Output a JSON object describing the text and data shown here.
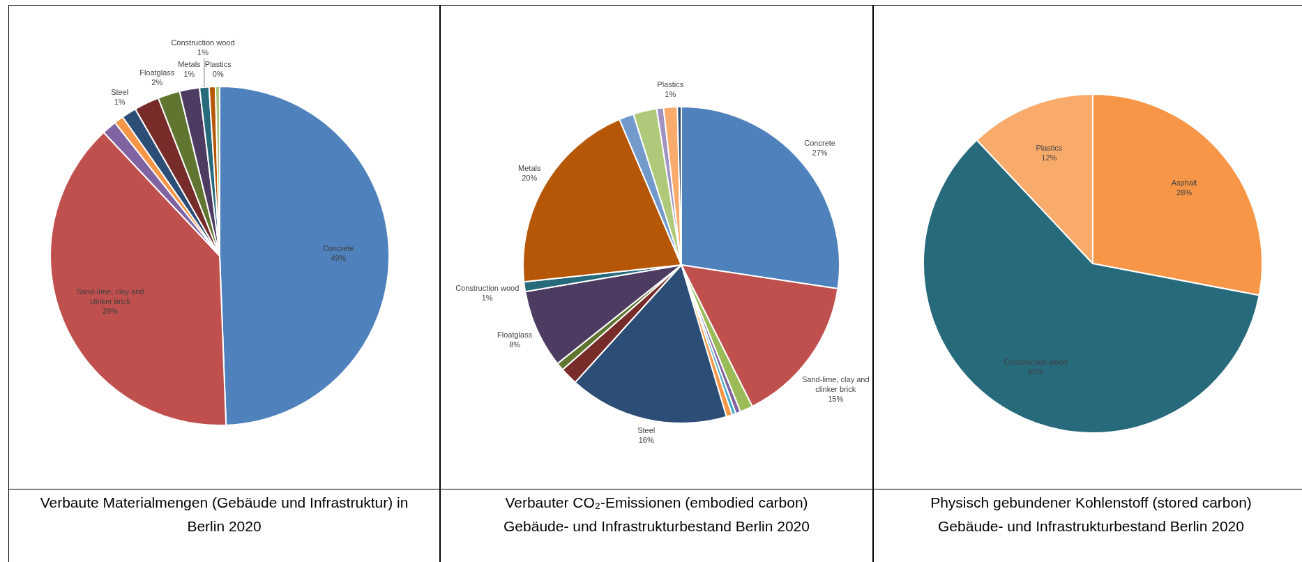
{
  "chart_data": [
    {
      "type": "pie",
      "title": "Verbaute Materialmengen (Gebäude und Infrastruktur) in Berlin 2020",
      "categories": [
        "Concrete",
        "Sand-lime, clay and clinker brick",
        null,
        null,
        "Steel",
        null,
        null,
        "Floatglass",
        "Construction wood",
        "Metals",
        "Plastics"
      ],
      "values": [
        49.4,
        38.6,
        1.4,
        0.9,
        1.4,
        2.4,
        2.1,
        1.9,
        0.9,
        0.6,
        0.4
      ],
      "value_labels": [
        "49%",
        "39%",
        null,
        null,
        "1%",
        null,
        null,
        "2%",
        "1%",
        "1%",
        "0%"
      ],
      "colors": [
        "#4f81bd",
        "#c0504d",
        "#8064a2",
        "#f79646",
        "#2c4d75",
        "#772c2a",
        "#5f7530",
        "#4d3b62",
        "#276a7c",
        "#b65708",
        "#a9c47f"
      ]
    },
    {
      "type": "pie",
      "title": "Verbauter CO₂-Emissionen (embodied carbon)",
      "subtitle": "Gebäude- und Infrastrukturbestand Berlin 2020",
      "categories": [
        "Concrete",
        "Sand-lime, clay and clinker brick",
        null,
        null,
        null,
        null,
        "Steel",
        null,
        null,
        "Floatglass",
        "Construction wood",
        "Metals",
        null,
        null,
        null,
        "Plastics",
        null
      ],
      "values": [
        27.4,
        15.2,
        1.3,
        0.5,
        0.4,
        0.6,
        16.3,
        1.8,
        0.8,
        8,
        1,
        20.3,
        1.5,
        2.4,
        0.7,
        1.4,
        0.4
      ],
      "value_labels": [
        "27%",
        "15%",
        null,
        null,
        null,
        null,
        "16%",
        null,
        null,
        "8%",
        "1%",
        "20%",
        null,
        null,
        null,
        "1%",
        null
      ],
      "colors": [
        "#4f81bd",
        "#c0504d",
        "#9bbb59",
        "#8064a2",
        "#4bacc6",
        "#f79646",
        "#2c4d75",
        "#772c2a",
        "#5f7530",
        "#4d3b62",
        "#276a7c",
        "#b65708",
        "#729aca",
        "#afc97a",
        "#a092c0",
        "#f9ab6b",
        "#2c4d75"
      ]
    },
    {
      "type": "pie",
      "title": "Physisch gebundener Kohlenstoff (stored carbon)",
      "subtitle": "Gebäude- und Infrastrukturbestand Berlin 2020",
      "categories": [
        "Asphalt",
        "Construction wood",
        "Plastics"
      ],
      "values": [
        28,
        60,
        12
      ],
      "value_labels": [
        "28%",
        "60%",
        "12%"
      ],
      "colors": [
        "#f79646",
        "#276a7c",
        "#f9ab6b"
      ]
    }
  ]
}
